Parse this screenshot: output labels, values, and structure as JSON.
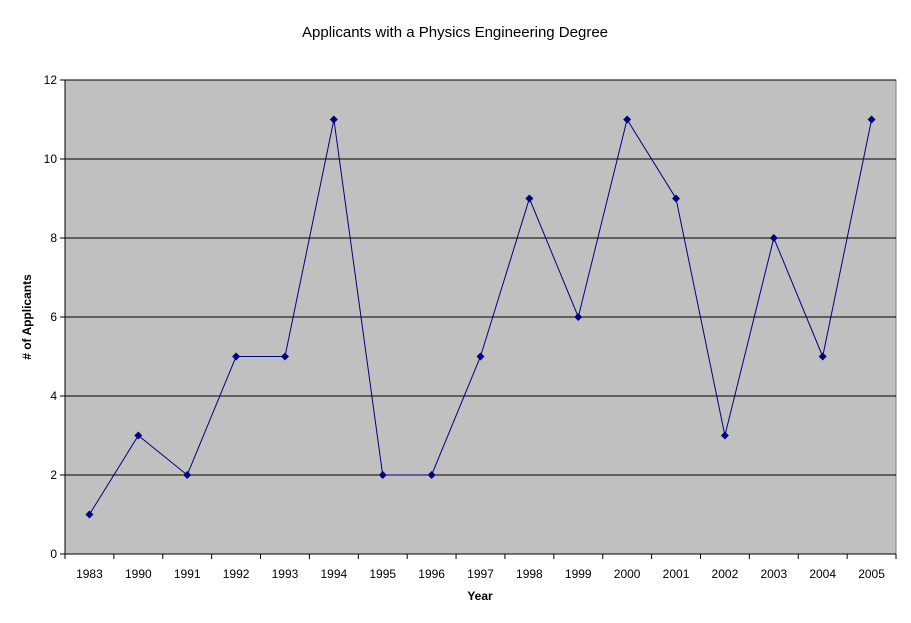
{
  "chart_data": {
    "type": "line",
    "title": "Applicants with a Physics Engineering Degree",
    "xlabel": "Year",
    "ylabel": "# of Applicants",
    "categories": [
      "1983",
      "1990",
      "1991",
      "1992",
      "1993",
      "1994",
      "1995",
      "1996",
      "1997",
      "1998",
      "1999",
      "2000",
      "2001",
      "2002",
      "2003",
      "2004",
      "2005"
    ],
    "series": [
      {
        "values": [
          1,
          3,
          2,
          5,
          5,
          11,
          2,
          2,
          5,
          9,
          6,
          11,
          9,
          3,
          8,
          5,
          11
        ]
      }
    ],
    "ylim": [
      0,
      12
    ],
    "yticks": [
      0,
      2,
      4,
      6,
      8,
      10,
      12
    ],
    "grid": true,
    "legend": "none",
    "colors": {
      "plot_background": "#c0c0c0",
      "gridline": "#000000",
      "series_line": "#000080",
      "marker": "#000080"
    }
  }
}
